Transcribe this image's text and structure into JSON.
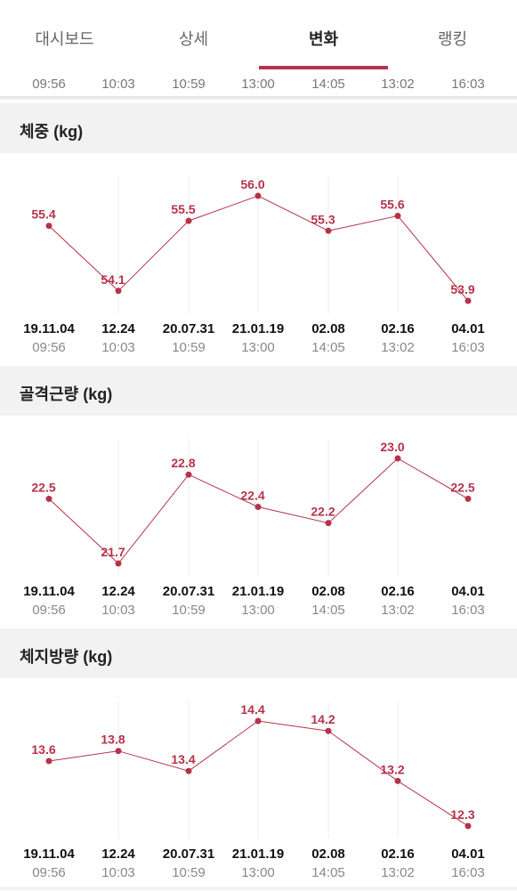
{
  "tabs": [
    {
      "label": "대시보드",
      "active": false
    },
    {
      "label": "상세",
      "active": false
    },
    {
      "label": "변화",
      "active": true
    },
    {
      "label": "랭킹",
      "active": false
    }
  ],
  "top_times": [
    "09:56",
    "10:03",
    "10:59",
    "13:00",
    "14:05",
    "13:02",
    "16:03"
  ],
  "colors": {
    "accent": "#b5334a",
    "line": "#b5334a",
    "grid": "#eeeeee"
  },
  "chart_data": [
    {
      "type": "line",
      "title": "체중 (kg)",
      "dates": [
        "19.11.04",
        "12.24",
        "20.07.31",
        "21.01.19",
        "02.08",
        "02.16",
        "04.01"
      ],
      "times": [
        "09:56",
        "10:03",
        "10:59",
        "13:00",
        "14:05",
        "13:02",
        "16:03"
      ],
      "values": [
        55.4,
        54.1,
        55.5,
        56.0,
        55.3,
        55.6,
        53.9
      ],
      "ylim": [
        53.9,
        56.0
      ],
      "grid": true
    },
    {
      "type": "line",
      "title": "골격근량 (kg)",
      "dates": [
        "19.11.04",
        "12.24",
        "20.07.31",
        "21.01.19",
        "02.08",
        "02.16",
        "04.01"
      ],
      "times": [
        "09:56",
        "10:03",
        "10:59",
        "13:00",
        "14:05",
        "13:02",
        "16:03"
      ],
      "values": [
        22.5,
        21.7,
        22.8,
        22.4,
        22.2,
        23.0,
        22.5
      ],
      "ylim": [
        21.7,
        23.0
      ],
      "grid": true
    },
    {
      "type": "line",
      "title": "체지방량 (kg)",
      "dates": [
        "19.11.04",
        "12.24",
        "20.07.31",
        "21.01.19",
        "02.08",
        "02.16",
        "04.01"
      ],
      "times": [
        "09:56",
        "10:03",
        "10:59",
        "13:00",
        "14:05",
        "13:02",
        "16:03"
      ],
      "values": [
        13.6,
        13.8,
        13.4,
        14.4,
        14.2,
        13.2,
        12.3
      ],
      "ylim": [
        12.3,
        14.4
      ],
      "grid": true
    }
  ]
}
